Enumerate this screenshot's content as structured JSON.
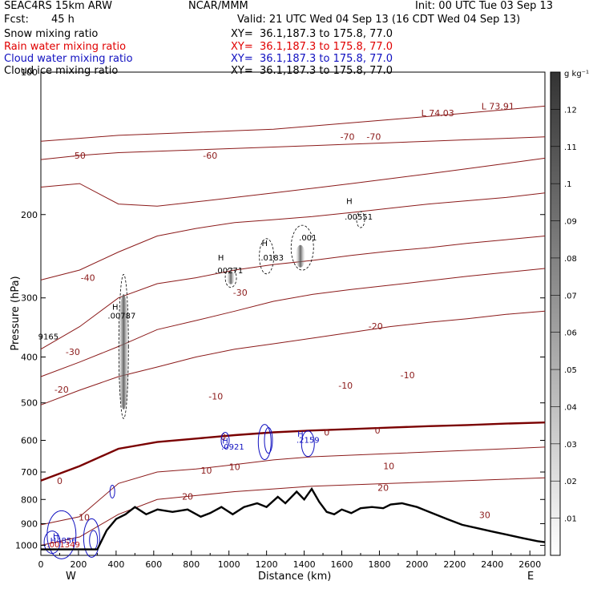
{
  "header": {
    "model": "SEAC4RS 15km ARW",
    "center": "NCAR/MMM",
    "init": "Init: 00 UTC Tue 03 Sep 13",
    "fcst_label": "Fcst:",
    "fcst_value": "45 h",
    "valid": "Valid: 21 UTC Wed 04 Sep 13 (16 CDT Wed 04 Sep 13)"
  },
  "fields": [
    {
      "name": "Snow mixing ratio",
      "xy": "XY=  36.1,187.3 to 175.8, 77.0",
      "color": "#000000"
    },
    {
      "name": "Rain water mixing ratio",
      "xy": "XY=  36.1,187.3 to 175.8, 77.0",
      "color": "#e00000"
    },
    {
      "name": "Cloud water mixing ratio",
      "xy": "XY=  36.1,187.3 to 175.8, 77.0",
      "color": "#1010c0"
    },
    {
      "name": "Cloud ice mixing ratio",
      "xy": "XY=  36.1,187.3 to 175.8, 77.0",
      "color": "#000000"
    }
  ],
  "colors": {
    "isotherm": "#8b1a1a",
    "freezing": "#7a0000",
    "terrain": "#000000",
    "cloud_water": "#1010c0",
    "rain": "#c01010"
  },
  "chart_data": {
    "type": "contour-cross-section",
    "ylabel": "Pressure (hPa)",
    "xlabel": "Distance (km)",
    "x_ticks": [
      "0",
      "200",
      "400",
      "600",
      "800",
      "1000",
      "1200",
      "1400",
      "1600",
      "1800",
      "2000",
      "2200",
      "2400",
      "2600"
    ],
    "y_ticks": [
      "100",
      "200",
      "300",
      "400",
      "500",
      "600",
      "700",
      "800",
      "900",
      "1000"
    ],
    "xlim": [
      0,
      2680
    ],
    "ylim": [
      1050,
      100
    ],
    "y_scale": "log",
    "endpoints": {
      "left": "W",
      "right": "E"
    },
    "isotherms": [
      {
        "t": -70,
        "p": [
          140,
          138,
          136,
          135,
          134,
          133,
          132,
          130,
          128,
          126,
          124,
          122,
          120,
          118
        ]
      },
      {
        "t": -60,
        "p": [
          153,
          150,
          148,
          147,
          146,
          145,
          144,
          143,
          142,
          141,
          140,
          139,
          138,
          137
        ]
      },
      {
        "t": -50,
        "p": [
          175,
          172,
          190,
          192,
          188,
          184,
          180,
          176,
          172,
          168,
          164,
          160,
          156,
          152
        ]
      },
      {
        "t": -40,
        "p": [
          275,
          262,
          240,
          222,
          214,
          208,
          205,
          202,
          198,
          194,
          190,
          187,
          184,
          180
        ]
      },
      {
        "t": -30,
        "p": [
          385,
          345,
          300,
          280,
          272,
          262,
          255,
          250,
          244,
          239,
          235,
          230,
          226,
          222
        ]
      },
      {
        "t": -20,
        "p": [
          440,
          410,
          380,
          350,
          335,
          320,
          305,
          295,
          288,
          282,
          276,
          270,
          265,
          260
        ]
      },
      {
        "t": -10,
        "p": [
          505,
          470,
          440,
          420,
          400,
          385,
          375,
          365,
          355,
          345,
          338,
          332,
          325,
          320
        ]
      },
      {
        "t": 0,
        "p": [
          730,
          680,
          625,
          605,
          595,
          585,
          577,
          572,
          568,
          564,
          560,
          557,
          553,
          550
        ]
      },
      {
        "t": 10,
        "p": [
          905,
          870,
          740,
          700,
          690,
          675,
          660,
          650,
          645,
          640,
          635,
          630,
          625,
          620
        ]
      },
      {
        "t": 20,
        "p": [
          1000,
          960,
          860,
          800,
          785,
          770,
          760,
          750,
          745,
          740,
          735,
          730,
          725,
          720
        ]
      }
    ],
    "contour_labels": [
      {
        "text": "-70",
        "x": 1630,
        "p": 137
      },
      {
        "text": "-70",
        "x": 1770,
        "p": 137
      },
      {
        "text": "-60",
        "x": 900,
        "p": 150
      },
      {
        "text": "-50",
        "x": 200,
        "p": 150
      },
      {
        "text": "-40",
        "x": 250,
        "p": 272
      },
      {
        "text": "-30",
        "x": 1060,
        "p": 292
      },
      {
        "text": "-30",
        "x": 170,
        "p": 390
      },
      {
        "text": "-20",
        "x": 1780,
        "p": 344
      },
      {
        "text": "-20",
        "x": 110,
        "p": 468
      },
      {
        "text": "-10",
        "x": 1950,
        "p": 437
      },
      {
        "text": "-10",
        "x": 1620,
        "p": 459
      },
      {
        "text": "-10",
        "x": 930,
        "p": 484
      },
      {
        "text": "0",
        "x": 1520,
        "p": 577
      },
      {
        "text": "0",
        "x": 1790,
        "p": 572
      },
      {
        "text": "0",
        "x": 970,
        "p": 590
      },
      {
        "text": "0",
        "x": 100,
        "p": 730
      },
      {
        "text": "10",
        "x": 1850,
        "p": 680
      },
      {
        "text": "10",
        "x": 880,
        "p": 694
      },
      {
        "text": "10",
        "x": 1030,
        "p": 683
      },
      {
        "text": "10",
        "x": 230,
        "p": 872
      },
      {
        "text": "20",
        "x": 1820,
        "p": 755
      },
      {
        "text": "20",
        "x": 780,
        "p": 789
      },
      {
        "text": "30",
        "x": 2360,
        "p": 863
      },
      {
        "text": "L 74.03",
        "x": 2110,
        "p": 122
      },
      {
        "text": "L 73.91",
        "x": 2430,
        "p": 118
      }
    ],
    "terrain_pressure": [
      [
        0,
        1020
      ],
      [
        300,
        1020
      ],
      [
        350,
        930
      ],
      [
        400,
        880
      ],
      [
        450,
        860
      ],
      [
        500,
        830
      ],
      [
        560,
        860
      ],
      [
        620,
        840
      ],
      [
        700,
        850
      ],
      [
        780,
        840
      ],
      [
        850,
        870
      ],
      [
        900,
        855
      ],
      [
        960,
        830
      ],
      [
        1020,
        860
      ],
      [
        1080,
        830
      ],
      [
        1150,
        815
      ],
      [
        1200,
        830
      ],
      [
        1260,
        790
      ],
      [
        1300,
        815
      ],
      [
        1360,
        770
      ],
      [
        1400,
        800
      ],
      [
        1440,
        760
      ],
      [
        1480,
        810
      ],
      [
        1520,
        850
      ],
      [
        1560,
        860
      ],
      [
        1600,
        840
      ],
      [
        1650,
        855
      ],
      [
        1700,
        835
      ],
      [
        1760,
        830
      ],
      [
        1820,
        835
      ],
      [
        1860,
        820
      ],
      [
        1920,
        815
      ],
      [
        2000,
        830
      ],
      [
        2080,
        855
      ],
      [
        2160,
        880
      ],
      [
        2240,
        905
      ],
      [
        2320,
        920
      ],
      [
        2400,
        935
      ],
      [
        2480,
        950
      ],
      [
        2560,
        965
      ],
      [
        2640,
        980
      ],
      [
        2680,
        985
      ]
    ],
    "annotations": [
      {
        "text": "H",
        "x": 395,
        "p": 318,
        "color": "#000000"
      },
      {
        "text": ".00787",
        "x": 430,
        "p": 332,
        "color": "#000000"
      },
      {
        "text": "H",
        "x": 957,
        "p": 250,
        "color": "#000000"
      },
      {
        "text": ".00271",
        "x": 1000,
        "p": 266,
        "color": "#000000"
      },
      {
        "text": "H",
        "x": 1190,
        "p": 233,
        "color": "#000000"
      },
      {
        "text": ".0183",
        "x": 1230,
        "p": 250,
        "color": "#000000"
      },
      {
        "text": ".001",
        "x": 1420,
        "p": 227,
        "color": "#000000"
      },
      {
        "text": "H",
        "x": 1640,
        "p": 190,
        "color": "#000000"
      },
      {
        "text": ".00551",
        "x": 1690,
        "p": 205,
        "color": "#000000"
      },
      {
        "text": "9165",
        "x": 40,
        "p": 367,
        "color": "#000000"
      },
      {
        "text": "H",
        "x": 980,
        "p": 610,
        "color": "#1010c0"
      },
      {
        "text": ".0921",
        "x": 1020,
        "p": 628,
        "color": "#1010c0"
      },
      {
        "text": "H",
        "x": 1380,
        "p": 590,
        "color": "#1010c0"
      },
      {
        "text": ".2159",
        "x": 1420,
        "p": 607,
        "color": "#1010c0"
      },
      {
        "text": "H",
        "x": 80,
        "p": 970,
        "color": "#1010c0"
      },
      {
        "text": "H4856",
        "x": 120,
        "p": 990,
        "color": "#1010c0"
      },
      {
        "text": ".001349",
        "x": 120,
        "p": 1010,
        "color": "#c01010"
      }
    ],
    "colorbar": {
      "unit": "g kg⁻¹",
      "ticks": [
        ".01",
        ".02",
        ".03",
        ".04",
        ".05",
        ".06",
        ".07",
        ".08",
        ".09",
        ".1",
        ".11",
        ".12"
      ],
      "range": [
        0,
        0.13
      ]
    }
  }
}
